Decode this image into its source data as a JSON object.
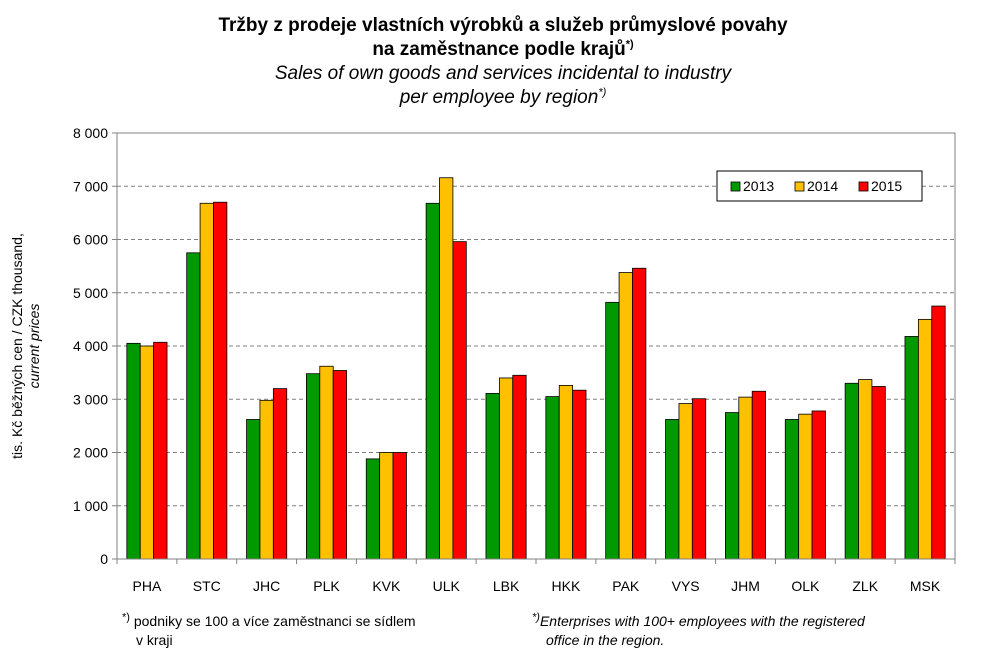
{
  "title": {
    "cz_line1": "Tržby z prodeje vlastních výrobků a služeb průmyslové povahy",
    "cz_line2": "na zaměstnance podle krajů",
    "cz_sup": "*)",
    "en_line1": "Sales of own goods and services incidental to industry",
    "en_line2": "per employee by region",
    "en_sup": "*)"
  },
  "footnotes": {
    "left_mark": "*)",
    "left_line1": " podniky se 100 a více zaměstnanci se sídlem",
    "left_line2": "v kraji",
    "right_mark": "*)",
    "right_line1": "Enterprises with 100+ employees with the registered",
    "right_line2": "office in the region."
  },
  "chart_data": {
    "type": "bar",
    "ylabel_line1": "tis. Kč běžných cen / CZK thousand,",
    "ylabel_line2": "current prices",
    "ylim": [
      0,
      8000
    ],
    "yticks": [
      "0",
      "1 000",
      "2 000",
      "3 000",
      "4 000",
      "5 000",
      "6 000",
      "7 000",
      "8 000"
    ],
    "grid": "horizontal dashed",
    "legend_position": "top-right",
    "categories": [
      "PHA",
      "STC",
      "JHC",
      "PLK",
      "KVK",
      "ULK",
      "LBK",
      "HKK",
      "PAK",
      "VYS",
      "JHM",
      "OLK",
      "ZLK",
      "MSK"
    ],
    "series": [
      {
        "name": "2013",
        "color": "#009900",
        "values": [
          4050,
          5750,
          2620,
          3480,
          1880,
          6680,
          3110,
          3050,
          4820,
          2620,
          2750,
          2620,
          3300,
          4180
        ]
      },
      {
        "name": "2014",
        "color": "#ffc000",
        "values": [
          4000,
          6680,
          2980,
          3620,
          2000,
          7160,
          3400,
          3260,
          5380,
          2920,
          3040,
          2720,
          3370,
          4500
        ]
      },
      {
        "name": "2015",
        "color": "#ff0000",
        "values": [
          4070,
          6700,
          3200,
          3540,
          2000,
          5960,
          3450,
          3170,
          5460,
          3010,
          3150,
          2780,
          3240,
          4750
        ]
      }
    ]
  }
}
